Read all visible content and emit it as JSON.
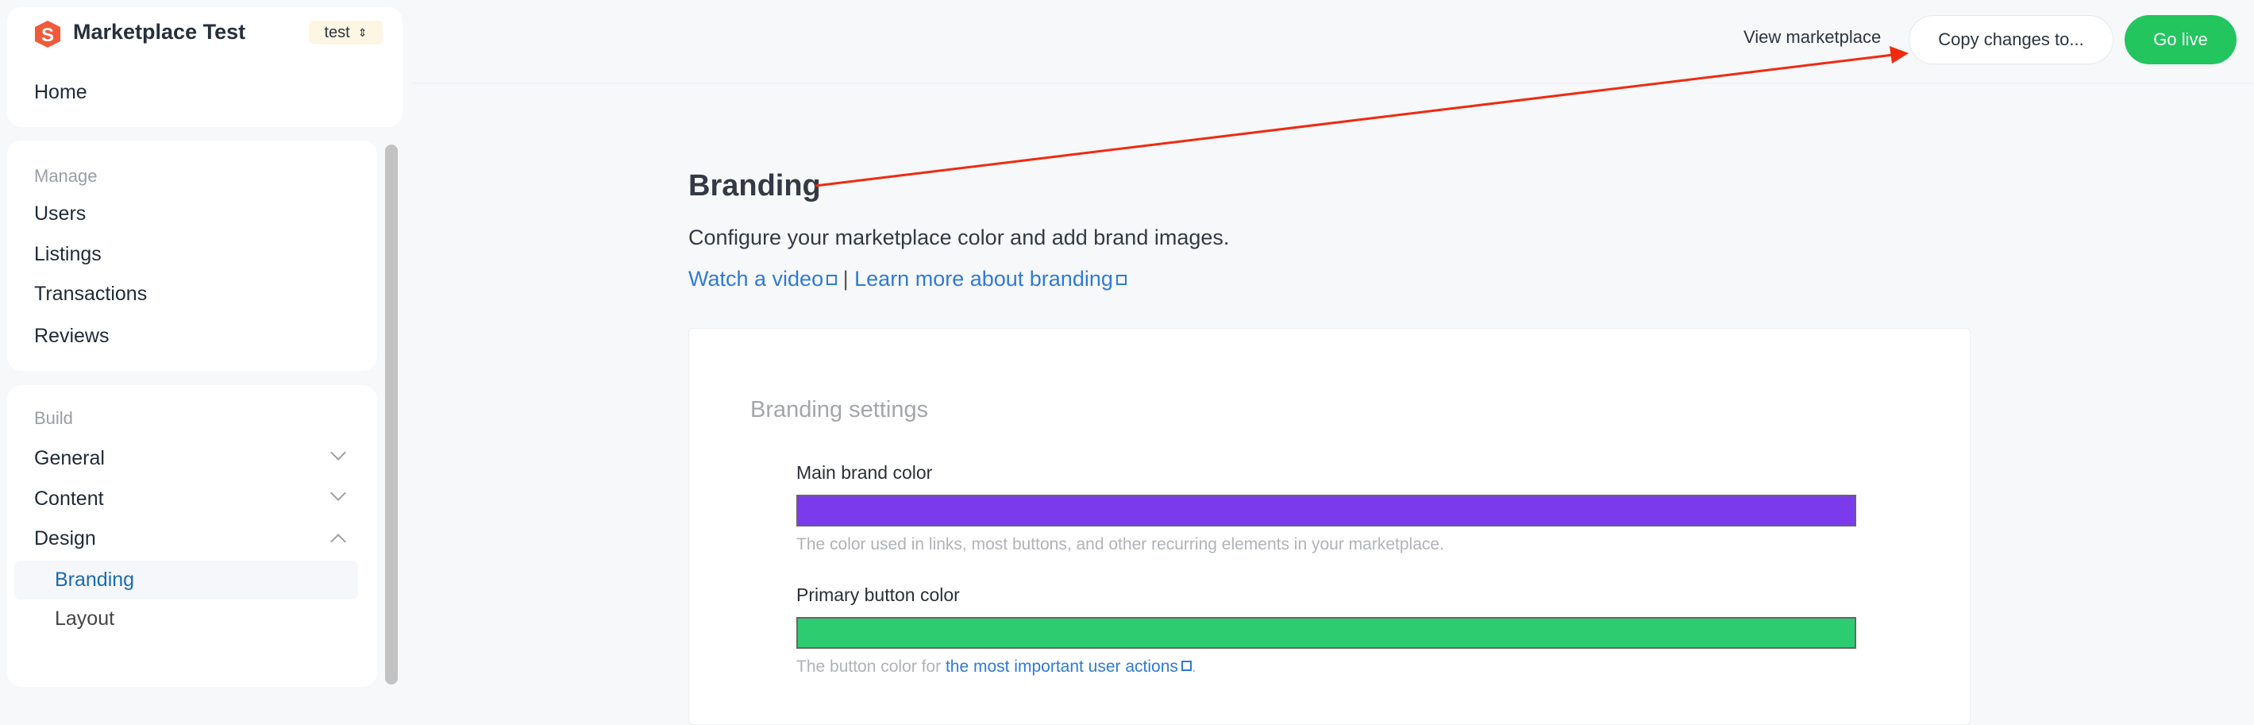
{
  "app": {
    "title": "Marketplace Test",
    "env": "test",
    "brand_color": "#f05a3a"
  },
  "sidebar": {
    "home": "Home",
    "manage": {
      "label": "Manage",
      "items": [
        "Users",
        "Listings",
        "Transactions",
        "Reviews"
      ]
    },
    "build": {
      "label": "Build",
      "items": [
        {
          "label": "General",
          "state": "collapsed"
        },
        {
          "label": "Content",
          "state": "collapsed"
        },
        {
          "label": "Design",
          "state": "expanded"
        }
      ],
      "design_children": [
        {
          "label": "Branding",
          "active": true
        },
        {
          "label": "Layout"
        }
      ]
    }
  },
  "topbar": {
    "view": "View marketplace",
    "copy": "Copy changes to...",
    "golive": "Go live",
    "golive_color": "#22c55e"
  },
  "page": {
    "title": "Branding",
    "subtitle": "Configure your marketplace color and add brand images.",
    "link1": "Watch a video",
    "sep": "|",
    "link2": "Learn more about branding"
  },
  "card": {
    "title": "Branding settings",
    "main": {
      "label": "Main brand color",
      "color": "#7c3aed",
      "help": "The color used in links, most buttons, and other recurring elements in your marketplace."
    },
    "primary": {
      "label": "Primary button color",
      "color": "#2ecc71",
      "help_prefix": "The button color for ",
      "help_link": "the most important user actions",
      "help_suffix": "."
    }
  }
}
